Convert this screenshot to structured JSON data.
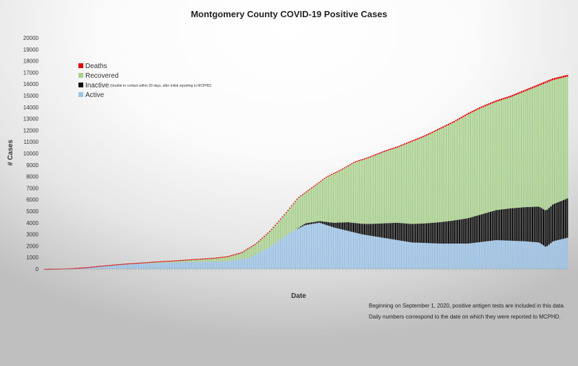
{
  "chart_data": {
    "type": "bar",
    "stacked": true,
    "title": "Montgomery County COVID-19 Positive Cases",
    "xlabel": "Date",
    "ylabel": "# Cases",
    "ylim": [
      0,
      20000
    ],
    "yticks": [
      0,
      1000,
      2000,
      3000,
      4000,
      5000,
      6000,
      7000,
      8000,
      9000,
      10000,
      11000,
      12000,
      13000,
      14000,
      15000,
      16000,
      17000,
      18000,
      19000,
      20000
    ],
    "grid": false,
    "legend_position": "upper-left",
    "legend": [
      {
        "key": "deaths",
        "label": "Deaths",
        "note": "",
        "color": "#e00000"
      },
      {
        "key": "recovered",
        "label": "Recovered",
        "note": "",
        "color": "#a9d08e"
      },
      {
        "key": "inactive",
        "label": "Inactive",
        "note": "(Unable to contact within 30 days, after initial reporting to MCPHD)",
        "color": "#111111"
      },
      {
        "key": "active",
        "label": "Active",
        "note": "",
        "color": "#9dc3e6"
      }
    ],
    "series_order": [
      "active",
      "inactive",
      "recovered",
      "deaths"
    ],
    "num_bars": 288,
    "keyframes": {
      "total": [
        [
          0,
          5
        ],
        [
          10,
          20
        ],
        [
          20,
          60
        ],
        [
          30,
          150
        ],
        [
          40,
          270
        ],
        [
          50,
          380
        ],
        [
          60,
          480
        ],
        [
          70,
          560
        ],
        [
          80,
          650
        ],
        [
          90,
          720
        ],
        [
          100,
          800
        ],
        [
          110,
          880
        ],
        [
          120,
          960
        ],
        [
          130,
          1100
        ],
        [
          140,
          1450
        ],
        [
          150,
          2200
        ],
        [
          160,
          3300
        ],
        [
          170,
          4700
        ],
        [
          180,
          6200
        ],
        [
          190,
          7100
        ],
        [
          200,
          8000
        ],
        [
          210,
          8600
        ],
        [
          220,
          9300
        ],
        [
          230,
          9700
        ],
        [
          240,
          10200
        ],
        [
          250,
          10600
        ],
        [
          260,
          11100
        ],
        [
          270,
          11600
        ],
        [
          280,
          12200
        ],
        [
          290,
          12800
        ],
        [
          300,
          13500
        ],
        [
          310,
          14100
        ],
        [
          320,
          14600
        ],
        [
          330,
          15000
        ],
        [
          340,
          15500
        ],
        [
          350,
          16000
        ],
        [
          360,
          16500
        ],
        [
          370,
          16800
        ]
      ],
      "active": [
        [
          0,
          5
        ],
        [
          30,
          150
        ],
        [
          60,
          450
        ],
        [
          100,
          600
        ],
        [
          130,
          660
        ],
        [
          145,
          950
        ],
        [
          160,
          1900
        ],
        [
          175,
          3200
        ],
        [
          185,
          3800
        ],
        [
          195,
          4000
        ],
        [
          205,
          3600
        ],
        [
          215,
          3300
        ],
        [
          225,
          3000
        ],
        [
          240,
          2700
        ],
        [
          260,
          2300
        ],
        [
          280,
          2200
        ],
        [
          300,
          2200
        ],
        [
          320,
          2500
        ],
        [
          340,
          2400
        ],
        [
          350,
          2300
        ],
        [
          355,
          1900
        ],
        [
          360,
          2400
        ],
        [
          370,
          2700
        ]
      ],
      "inactive": [
        [
          0,
          0
        ],
        [
          178,
          0
        ],
        [
          185,
          150
        ],
        [
          195,
          150
        ],
        [
          205,
          400
        ],
        [
          215,
          750
        ],
        [
          230,
          1000
        ],
        [
          250,
          1500
        ],
        [
          270,
          1700
        ],
        [
          290,
          2000
        ],
        [
          310,
          2400
        ],
        [
          330,
          2800
        ],
        [
          350,
          3100
        ],
        [
          360,
          3200
        ],
        [
          370,
          3400
        ]
      ],
      "deaths": [
        [
          0,
          0
        ],
        [
          50,
          8
        ],
        [
          100,
          20
        ],
        [
          140,
          40
        ],
        [
          180,
          60
        ],
        [
          220,
          80
        ],
        [
          260,
          100
        ],
        [
          300,
          120
        ],
        [
          340,
          140
        ],
        [
          370,
          160
        ]
      ]
    },
    "notes": [
      "Beginning on September 1, 2020, positive antigen tests are included in this data.",
      "Daily numbers correspond to the date on which they were reported to MCPHD."
    ]
  }
}
